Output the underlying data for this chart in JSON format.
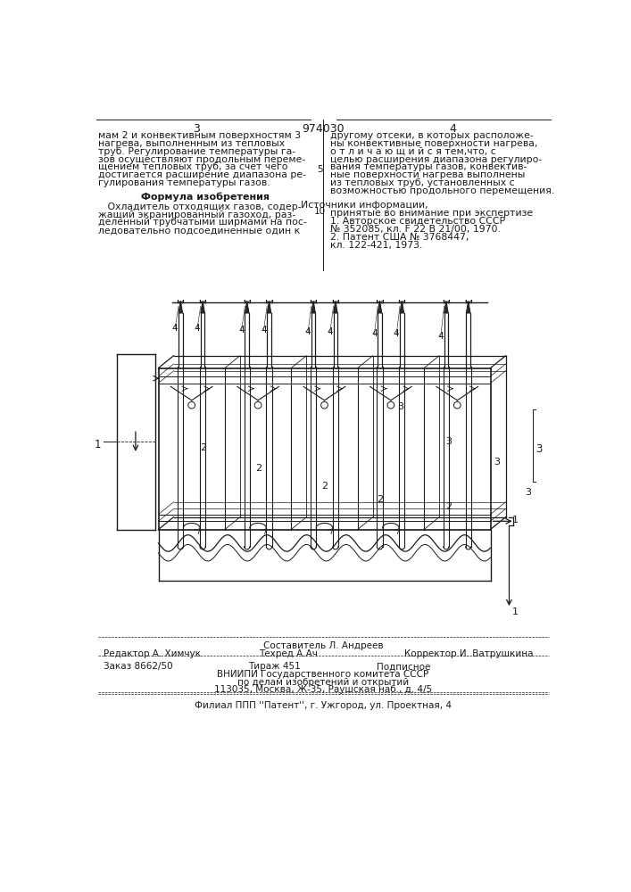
{
  "background_color": "#ffffff",
  "page_number_left": "3",
  "page_number_center": "974030",
  "page_number_right": "4",
  "col_left_text": [
    "мам 2 и конвективным поверхностям 3",
    "нагрева, выполненным из тепловых",
    "труб. Регулирование температуры га-",
    "зов осуществляют продольным переме-",
    "щением тепловых труб, за счет чего",
    "достигается расширение диапазона ре-",
    "гулирования температуры газов."
  ],
  "line_number_5": "5",
  "line_number_10": "10",
  "formula_title": "Формула изобретения",
  "formula_text": [
    "   Охладитель отходящих газов, содер-",
    "жащий экранированный газоход, раз-",
    "деленный трубчатыми ширмами на пос-",
    "ледовательно подсоединенные один к"
  ],
  "col_right_text": [
    "другому отсеки, в которых расположе-",
    "ны конвективные поверхности нагрева,",
    "о т л и ч а ю щ и й с я тем,что, с",
    "целью расширения диапазона регулиро-",
    "вания температуры газов, конвектив-",
    "ные поверхности нагрева выполнены",
    "из тепловых труб, установленных с",
    "возможностью продольного перемещения."
  ],
  "sources_title": "Источники информации,",
  "sources_subtitle": "принятые во внимание при экспертизе",
  "sources_text": [
    "1. Авторское свидетельство СССР",
    "№ 352085, кл. F 22 В 21/00, 1970.",
    "2. Патент США № 3768447,",
    "кл. 122-421, 1973."
  ],
  "footer_editor": "Редактор А. Химчук",
  "footer_composer_label": "Составитель Л. Андреев",
  "footer_tech_label": "Техред А.Ач",
  "footer_corrector": "Корректор И. Ватрушкина",
  "footer_order": "Заказ 8662/50",
  "footer_circulation": "Тираж 451",
  "footer_subscription": "Подписное",
  "footer_vnipi": "ВНИИПИ Государственного комитета СССР",
  "footer_vnipi2": "по делам изобретений и открытий",
  "footer_address": "113035, Москва, Ж-35, Раушская наб., д. 4/5",
  "footer_filial": "Филиал ППП ''Патент'', г. Ужгород, ул. Проектная, 4"
}
